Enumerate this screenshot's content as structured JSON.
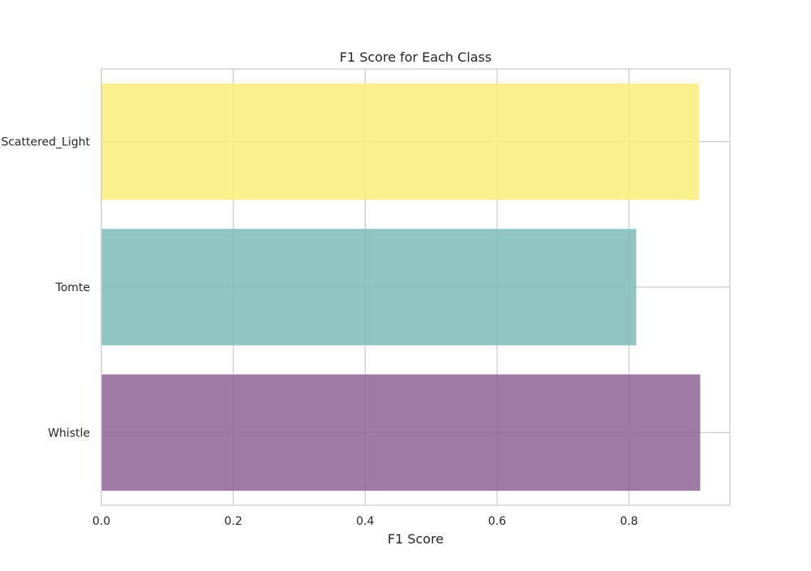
{
  "chart_data": {
    "type": "bar",
    "orientation": "horizontal",
    "title": "F1 Score for Each Class",
    "xlabel": "F1 Score",
    "ylabel": "",
    "categories": [
      "Whistle",
      "Tomte",
      "Scattered_Light"
    ],
    "values": [
      0.908,
      0.811,
      0.906
    ],
    "colors": [
      "#8e6394",
      "#7bbcb8",
      "#fcec7a"
    ],
    "xlim": [
      0,
      0.953
    ],
    "xticks": [
      0.0,
      0.2,
      0.4,
      0.6,
      0.8
    ],
    "xtick_labels": [
      "0.0",
      "0.2",
      "0.4",
      "0.6",
      "0.8"
    ],
    "grid": true,
    "legend": "none",
    "style": {
      "background": "#ffffff",
      "grid_color": "#cccccc",
      "axes_edge_color": "#cccccc",
      "text_color": "#262626",
      "bar_opacity": 0.85
    }
  }
}
